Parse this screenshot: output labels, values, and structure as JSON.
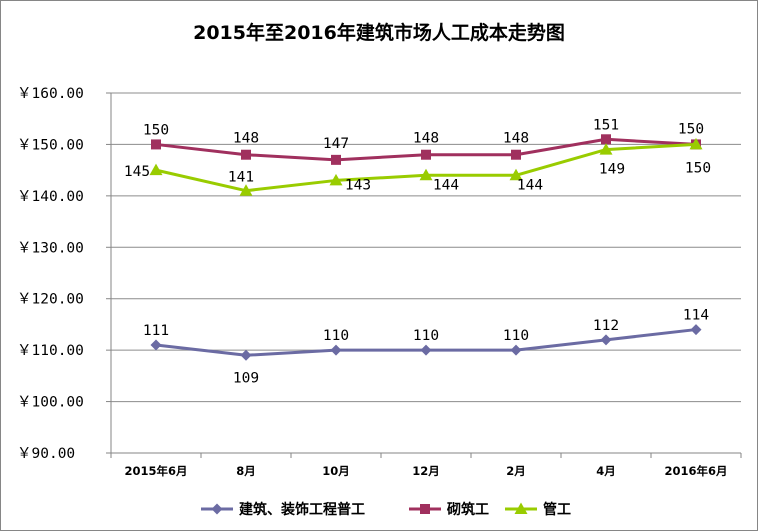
{
  "chart_data": {
    "type": "line",
    "title": "2015年至2016年建筑市场人工成本走势图",
    "categories": [
      "2015年6月",
      "8月",
      "10月",
      "12月",
      "2月",
      "4月",
      "2016年6月"
    ],
    "y_tick_labels": [
      "￥160.00",
      "￥150.00",
      "￥140.00",
      "￥130.00",
      "￥120.00",
      "￥110.00",
      "￥100.00",
      "￥90.00"
    ],
    "ylim": [
      90,
      160
    ],
    "grid": true,
    "legend_position": "bottom",
    "series": [
      {
        "name": "建筑、装饰工程普工",
        "values": [
          111,
          109,
          110,
          110,
          110,
          112,
          114
        ],
        "color": "#6B6BA3",
        "marker": "diamond",
        "labels": [
          "111",
          "109",
          "110",
          "110",
          "110",
          "112",
          "114"
        ]
      },
      {
        "name": "砌筑工",
        "values": [
          150,
          148,
          147,
          148,
          148,
          151,
          150
        ],
        "color": "#A0305E",
        "marker": "square",
        "labels": [
          "150",
          "148",
          "147",
          "148",
          "148",
          "151",
          "150"
        ]
      },
      {
        "name": "管工",
        "values": [
          145,
          141,
          143,
          144,
          144,
          149,
          150
        ],
        "color": "#99CC00",
        "marker": "triangle",
        "labels": [
          "145",
          "141",
          "143",
          "144",
          "144",
          "149",
          "150"
        ]
      }
    ]
  }
}
